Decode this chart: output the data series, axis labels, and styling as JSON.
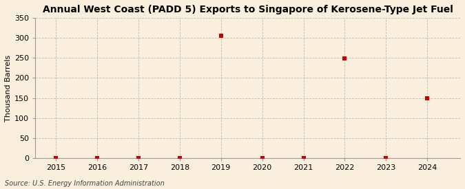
{
  "title": "Annual West Coast (PADD 5) Exports to Singapore of Kerosene-Type Jet Fuel",
  "ylabel": "Thousand Barrels",
  "source_text": "Source: U.S. Energy Information Administration",
  "background_color": "#faeedd",
  "years": [
    2015,
    2016,
    2017,
    2018,
    2019,
    2020,
    2021,
    2022,
    2023,
    2024
  ],
  "values": [
    0,
    0,
    0,
    0,
    305,
    0,
    0,
    249,
    0,
    149
  ],
  "xlim": [
    2014.5,
    2024.8
  ],
  "ylim": [
    0,
    350
  ],
  "yticks": [
    0,
    50,
    100,
    150,
    200,
    250,
    300,
    350
  ],
  "xticks": [
    2015,
    2016,
    2017,
    2018,
    2019,
    2020,
    2021,
    2022,
    2023,
    2024
  ],
  "marker_color": "#cc0000",
  "marker_size": 4,
  "grid_color": "#bbbbbb",
  "title_fontsize": 10,
  "axis_label_fontsize": 8,
  "tick_fontsize": 8,
  "source_fontsize": 7
}
